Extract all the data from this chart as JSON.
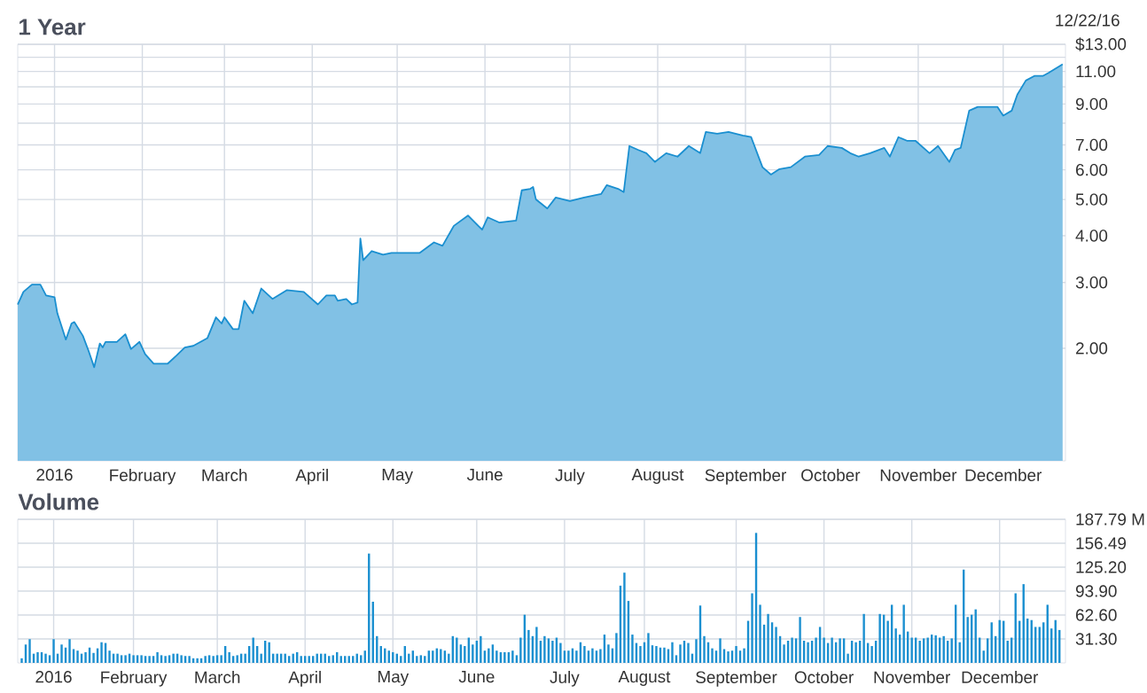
{
  "chart_data": [
    {
      "type": "area",
      "title": "1 Year",
      "annotations": [
        "12/22/16"
      ],
      "color": "#1a8fd0",
      "log": "y",
      "grid": true,
      "x": [
        "2015-12-19",
        "2015-12-21",
        "2015-12-24",
        "2015-12-27",
        "2015-12-29",
        "2016-01-01",
        "2016-01-02",
        "2016-01-05",
        "2016-01-07",
        "2016-01-08",
        "2016-01-11",
        "2016-01-13",
        "2016-01-15",
        "2016-01-17",
        "2016-01-18",
        "2016-01-19",
        "2016-01-23",
        "2016-01-26",
        "2016-01-28",
        "2016-01-31",
        "2016-02-02",
        "2016-02-05",
        "2016-02-10",
        "2016-02-13",
        "2016-02-16",
        "2016-02-19",
        "2016-02-24",
        "2016-02-27",
        "2016-02-29",
        "2016-03-01",
        "2016-03-04",
        "2016-03-06",
        "2016-03-08",
        "2016-03-11",
        "2016-03-14",
        "2016-03-18",
        "2016-03-23",
        "2016-03-29",
        "2016-04-03",
        "2016-04-06",
        "2016-04-09",
        "2016-04-10",
        "2016-04-13",
        "2016-04-15",
        "2016-04-17",
        "2016-04-18",
        "2016-04-19",
        "2016-04-22",
        "2016-04-26",
        "2016-04-29",
        "2016-05-09",
        "2016-05-14",
        "2016-05-17",
        "2016-05-21",
        "2016-05-26",
        "2016-05-31",
        "2016-06-02",
        "2016-06-06",
        "2016-06-12",
        "2016-06-14",
        "2016-06-17",
        "2016-06-18",
        "2016-06-19",
        "2016-06-23",
        "2016-06-26",
        "2016-07-01",
        "2016-07-06",
        "2016-07-12",
        "2016-07-14",
        "2016-07-18",
        "2016-07-20",
        "2016-07-22",
        "2016-07-25",
        "2016-07-28",
        "2016-07-31",
        "2016-08-04",
        "2016-08-08",
        "2016-08-12",
        "2016-08-16",
        "2016-08-18",
        "2016-08-22",
        "2016-08-26",
        "2016-08-31",
        "2016-09-03",
        "2016-09-07",
        "2016-09-10",
        "2016-09-13",
        "2016-09-17",
        "2016-09-22",
        "2016-09-27",
        "2016-09-30",
        "2016-10-05",
        "2016-10-08",
        "2016-10-11",
        "2016-10-15",
        "2016-10-20",
        "2016-10-22",
        "2016-10-25",
        "2016-10-28",
        "2016-10-31",
        "2016-11-05",
        "2016-11-08",
        "2016-11-12",
        "2016-11-14",
        "2016-11-16",
        "2016-11-19",
        "2016-11-22",
        "2016-11-29",
        "2016-12-01",
        "2016-12-04",
        "2016-12-06",
        "2016-12-09",
        "2016-12-12",
        "2016-12-15",
        "2016-12-17",
        "2016-12-22"
      ],
      "values": [
        2.62,
        2.83,
        2.96,
        2.96,
        2.77,
        2.74,
        2.48,
        2.11,
        2.33,
        2.35,
        2.16,
        1.97,
        1.78,
        2.06,
        2.01,
        2.08,
        2.08,
        2.18,
        1.99,
        2.08,
        1.93,
        1.82,
        1.82,
        1.91,
        2.01,
        2.03,
        2.13,
        2.42,
        2.33,
        2.42,
        2.25,
        2.25,
        2.68,
        2.48,
        2.89,
        2.71,
        2.86,
        2.83,
        2.62,
        2.77,
        2.77,
        2.68,
        2.71,
        2.62,
        2.65,
        3.93,
        3.44,
        3.64,
        3.56,
        3.6,
        3.6,
        3.84,
        3.76,
        4.25,
        4.53,
        4.15,
        4.48,
        4.34,
        4.39,
        5.29,
        5.34,
        5.4,
        5.0,
        4.73,
        5.06,
        4.95,
        5.06,
        5.17,
        5.46,
        5.34,
        5.23,
        6.95,
        6.79,
        6.65,
        6.3,
        6.65,
        6.51,
        6.95,
        6.65,
        7.58,
        7.5,
        7.58,
        7.42,
        7.34,
        6.1,
        5.83,
        6.03,
        6.1,
        6.51,
        6.58,
        6.95,
        6.87,
        6.65,
        6.51,
        6.65,
        6.87,
        6.51,
        7.34,
        7.18,
        7.18,
        6.65,
        6.95,
        6.3,
        6.79,
        6.87,
        8.64,
        8.84,
        8.84,
        8.38,
        8.64,
        9.54,
        10.4,
        10.7,
        10.7,
        10.9,
        11.5
      ],
      "xlim": [
        "2015-12-19",
        "2016-12-23"
      ],
      "xticks": [
        {
          "value": "2016-01-01",
          "label": "2016"
        },
        {
          "value": "2016-02-01",
          "label": "February"
        },
        {
          "value": "2016-03-01",
          "label": "March"
        },
        {
          "value": "2016-04-01",
          "label": "April"
        },
        {
          "value": "2016-05-01",
          "label": "May"
        },
        {
          "value": "2016-06-01",
          "label": "June"
        },
        {
          "value": "2016-07-01",
          "label": "July"
        },
        {
          "value": "2016-08-01",
          "label": "August"
        },
        {
          "value": "2016-09-01",
          "label": "September"
        },
        {
          "value": "2016-10-01",
          "label": "October"
        },
        {
          "value": "2016-11-01",
          "label": "November"
        },
        {
          "value": "2016-12-01",
          "label": "December"
        }
      ],
      "ylim": [
        1,
        13
      ],
      "yticks": [
        {
          "value": 2,
          "label": "2.00"
        },
        {
          "value": 3,
          "label": "3.00"
        },
        {
          "value": 4,
          "label": "4.00"
        },
        {
          "value": 5,
          "label": "5.00"
        },
        {
          "value": 6,
          "label": "6.00"
        },
        {
          "value": 7,
          "label": "7.00"
        },
        {
          "value": 8,
          "label": null
        },
        {
          "value": 9,
          "label": "9.00"
        },
        {
          "value": 10,
          "label": null
        },
        {
          "value": 11,
          "label": "11.00"
        },
        {
          "value": 12,
          "label": null
        },
        {
          "value": 13,
          "label": "$13.00"
        }
      ]
    },
    {
      "type": "bar",
      "title": "Volume",
      "color": "#1a8fd0",
      "grid": true,
      "categories": [
        null,
        null,
        null,
        null,
        null,
        null,
        null,
        null,
        "2016",
        null,
        null,
        null,
        null,
        null,
        null,
        null,
        null,
        null,
        null,
        null,
        null,
        null,
        null,
        null,
        null,
        null,
        null,
        null,
        "February",
        null,
        null,
        null,
        null,
        null,
        null,
        null,
        null,
        null,
        null,
        null,
        null,
        null,
        null,
        null,
        null,
        null,
        null,
        null,
        null,
        "March",
        null,
        null,
        null,
        null,
        null,
        null,
        null,
        null,
        null,
        null,
        null,
        null,
        null,
        null,
        null,
        null,
        null,
        null,
        null,
        null,
        null,
        "April",
        null,
        null,
        null,
        null,
        null,
        null,
        null,
        null,
        null,
        null,
        null,
        null,
        null,
        null,
        null,
        null,
        null,
        null,
        null,
        null,
        null,
        "May",
        null,
        null,
        null,
        null,
        null,
        null,
        null,
        null,
        null,
        null,
        null,
        null,
        null,
        null,
        null,
        null,
        null,
        null,
        null,
        null,
        "June",
        null,
        null,
        null,
        null,
        null,
        null,
        null,
        null,
        null,
        null,
        null,
        null,
        null,
        null,
        null,
        null,
        null,
        null,
        null,
        null,
        null,
        "July",
        null,
        null,
        null,
        null,
        null,
        null,
        null,
        null,
        null,
        null,
        null,
        null,
        null,
        null,
        null,
        null,
        null,
        null,
        null,
        "August",
        null,
        null,
        null,
        null,
        null,
        null,
        null,
        null,
        null,
        null,
        null,
        null,
        null,
        null,
        null,
        null,
        null,
        null,
        null,
        null,
        null,
        null,
        "September",
        null,
        null,
        null,
        null,
        null,
        null,
        null,
        null,
        null,
        null,
        null,
        null,
        null,
        null,
        null,
        null,
        null,
        null,
        null,
        null,
        null,
        "October",
        null,
        null,
        null,
        null,
        null,
        null,
        null,
        null,
        null,
        null,
        null,
        null,
        null,
        null,
        null,
        null,
        null,
        null,
        null,
        null,
        null,
        "November",
        null,
        null,
        null,
        null,
        null,
        null,
        null,
        null,
        null,
        null,
        null,
        null,
        null,
        null,
        null,
        null,
        null,
        null,
        null,
        null,
        null,
        "December",
        null,
        null,
        null,
        null,
        null,
        null,
        null,
        null,
        null,
        null,
        null,
        null,
        null,
        null,
        null
      ],
      "values": [
        6,
        24,
        31,
        12,
        14,
        14,
        12,
        10,
        31,
        12,
        24,
        20,
        31,
        18,
        16,
        12,
        14,
        20,
        13,
        19,
        27,
        26,
        16,
        12,
        12,
        10,
        10,
        12,
        10,
        10,
        10,
        9,
        9,
        9,
        14,
        10,
        9,
        10,
        12,
        12,
        10,
        9,
        9,
        6,
        6,
        6,
        9,
        10,
        9,
        10,
        10,
        22,
        14,
        9,
        10,
        12,
        12,
        22,
        33,
        22,
        12,
        29,
        27,
        12,
        12,
        12,
        12,
        9,
        12,
        14,
        9,
        9,
        9,
        9,
        12,
        12,
        12,
        9,
        10,
        14,
        9,
        9,
        9,
        9,
        12,
        10,
        16,
        143,
        80,
        35,
        22,
        19,
        16,
        14,
        12,
        9,
        22,
        12,
        16,
        9,
        10,
        9,
        16,
        16,
        19,
        18,
        16,
        12,
        35,
        33,
        24,
        22,
        33,
        24,
        29,
        35,
        16,
        19,
        24,
        16,
        14,
        14,
        14,
        16,
        10,
        33,
        63,
        43,
        35,
        47,
        29,
        35,
        32,
        29,
        33,
        26,
        16,
        16,
        19,
        16,
        27,
        22,
        16,
        19,
        16,
        18,
        37,
        24,
        19,
        39,
        101,
        118,
        81,
        37,
        26,
        22,
        27,
        39,
        23,
        22,
        20,
        20,
        18,
        27,
        10,
        24,
        29,
        26,
        12,
        31,
        75,
        35,
        27,
        19,
        16,
        32,
        18,
        15,
        16,
        22,
        16,
        19,
        55,
        91,
        170,
        76,
        50,
        64,
        53,
        47,
        35,
        24,
        29,
        33,
        32,
        60,
        29,
        27,
        29,
        33,
        47,
        33,
        26,
        33,
        27,
        32,
        32,
        12,
        29,
        27,
        29,
        64,
        26,
        22,
        29,
        64,
        63,
        55,
        76,
        45,
        37,
        76,
        41,
        33,
        33,
        29,
        32,
        33,
        37,
        36,
        33,
        35,
        29,
        32,
        76,
        27,
        122,
        60,
        63,
        70,
        33,
        16,
        32,
        53,
        35,
        56,
        55,
        29,
        33,
        91,
        55,
        103,
        58,
        56,
        47,
        47,
        53,
        76,
        45,
        56,
        43
      ],
      "ylim": [
        0,
        187.79
      ],
      "yticks": [
        {
          "value": 31.3,
          "label": "31.30"
        },
        {
          "value": 62.6,
          "label": "62.60"
        },
        {
          "value": 93.9,
          "label": "93.90"
        },
        {
          "value": 125.2,
          "label": "125.20"
        },
        {
          "value": 156.49,
          "label": "156.49"
        },
        {
          "value": 187.79,
          "label": "187.79 M"
        }
      ]
    }
  ]
}
